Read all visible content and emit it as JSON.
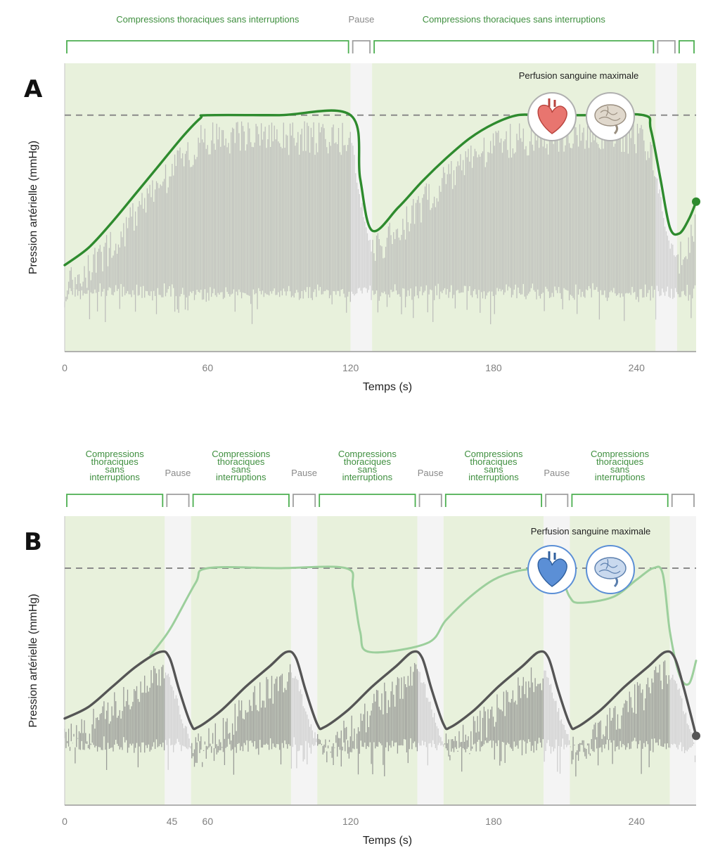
{
  "chart_data": [
    {
      "panel": "A",
      "type": "line",
      "xlabel": "Temps (s)",
      "ylabel": "Pression artérielle (mmHg)",
      "xlim": [
        0,
        265
      ],
      "x_ticks": [
        "0",
        "60",
        "120",
        "180",
        "240"
      ],
      "x_tick_values": [
        0,
        60,
        120,
        180,
        240
      ],
      "grid": false,
      "phases": [
        {
          "label": "Compressions thoraciques sans interruptions",
          "kind": "compression",
          "start": 0,
          "end": 120
        },
        {
          "label": "Pause",
          "kind": "pause",
          "start": 120,
          "end": 129
        },
        {
          "label": "Compressions thoraciques sans interruptions",
          "kind": "compression",
          "start": 129,
          "end": 248
        },
        {
          "label": "",
          "kind": "pause",
          "start": 248,
          "end": 257
        },
        {
          "label": "",
          "kind": "compression",
          "start": 257,
          "end": 265
        }
      ],
      "threshold_label": "Perfusion sanguine maximale",
      "threshold_level": 0.82,
      "icons": [
        "heart-icon",
        "brain-icon"
      ],
      "icon_color": "#e8756f",
      "series": [
        {
          "values_x": [
            0,
            10,
            20,
            30,
            40,
            50,
            57,
            60,
            90,
            120,
            124,
            129,
            140,
            150,
            160,
            170,
            180,
            190,
            200,
            220,
            243,
            246,
            250,
            254,
            258,
            262,
            265
          ],
          "values_y": [
            0.3,
            0.36,
            0.45,
            0.55,
            0.65,
            0.75,
            0.81,
            0.82,
            0.82,
            0.82,
            0.6,
            0.42,
            0.5,
            0.59,
            0.67,
            0.74,
            0.79,
            0.82,
            0.82,
            0.82,
            0.82,
            0.77,
            0.6,
            0.43,
            0.41,
            0.46,
            0.52
          ],
          "color": "#2e8b2e"
        }
      ]
    },
    {
      "panel": "B",
      "type": "line",
      "xlabel": "Temps (s)",
      "ylabel": "Pression artérielle (mmHg)",
      "xlim": [
        0,
        265
      ],
      "x_ticks": [
        "0",
        "45",
        "60",
        "120",
        "180",
        "240"
      ],
      "x_tick_values": [
        0,
        45,
        60,
        120,
        180,
        240
      ],
      "grid": false,
      "phases": [
        {
          "label": "Compressions thoraciques sans interruptions",
          "kind": "compression",
          "start": 0,
          "end": 42
        },
        {
          "label": "Pause",
          "kind": "pause",
          "start": 42,
          "end": 53
        },
        {
          "label": "Compressions thoraciques sans interruptions",
          "kind": "compression",
          "start": 53,
          "end": 95
        },
        {
          "label": "Pause",
          "kind": "pause",
          "start": 95,
          "end": 106
        },
        {
          "label": "Compressions thoraciques sans interruptions",
          "kind": "compression",
          "start": 106,
          "end": 148
        },
        {
          "label": "Pause",
          "kind": "pause",
          "start": 148,
          "end": 159
        },
        {
          "label": "Compressions thoraciques sans interruptions",
          "kind": "compression",
          "start": 159,
          "end": 201
        },
        {
          "label": "Pause",
          "kind": "pause",
          "start": 201,
          "end": 212
        },
        {
          "label": "Compressions thoraciques sans interruptions",
          "kind": "compression",
          "start": 212,
          "end": 254
        },
        {
          "label": "",
          "kind": "pause",
          "start": 254,
          "end": 265
        }
      ],
      "threshold_label": "Perfusion sanguine maximale",
      "threshold_level": 0.82,
      "icons": [
        "heart-icon",
        "brain-icon"
      ],
      "icon_color": "#5b8fd6",
      "series": [
        {
          "values_x": [
            0,
            10,
            20,
            30,
            40,
            44,
            48,
            53,
            56,
            66,
            76,
            86,
            93,
            97,
            101,
            106,
            109,
            119,
            129,
            139,
            146,
            150,
            154,
            159,
            162,
            172,
            182,
            192,
            199,
            203,
            207,
            212,
            215,
            225,
            235,
            245,
            252,
            256,
            260,
            265
          ],
          "values_y": [
            0.3,
            0.34,
            0.41,
            0.48,
            0.53,
            0.51,
            0.4,
            0.28,
            0.27,
            0.33,
            0.41,
            0.48,
            0.53,
            0.51,
            0.4,
            0.28,
            0.27,
            0.33,
            0.41,
            0.48,
            0.53,
            0.51,
            0.4,
            0.28,
            0.27,
            0.33,
            0.41,
            0.48,
            0.53,
            0.51,
            0.4,
            0.28,
            0.27,
            0.33,
            0.41,
            0.48,
            0.53,
            0.51,
            0.4,
            0.24
          ],
          "color": "#555555"
        },
        {
          "values_x": [
            36,
            40,
            45,
            55,
            60,
            90,
            118,
            121,
            124,
            128,
            152,
            160,
            170,
            180,
            190,
            200,
            206,
            209,
            212,
            216,
            230,
            240,
            247,
            251,
            254,
            258,
            262,
            265
          ],
          "values_y": [
            0.52,
            0.56,
            0.62,
            0.77,
            0.82,
            0.82,
            0.82,
            0.75,
            0.6,
            0.53,
            0.56,
            0.64,
            0.72,
            0.78,
            0.81,
            0.82,
            0.82,
            0.78,
            0.72,
            0.7,
            0.72,
            0.78,
            0.82,
            0.8,
            0.6,
            0.45,
            0.42,
            0.5
          ],
          "color": "#9ccf9c"
        }
      ]
    }
  ]
}
